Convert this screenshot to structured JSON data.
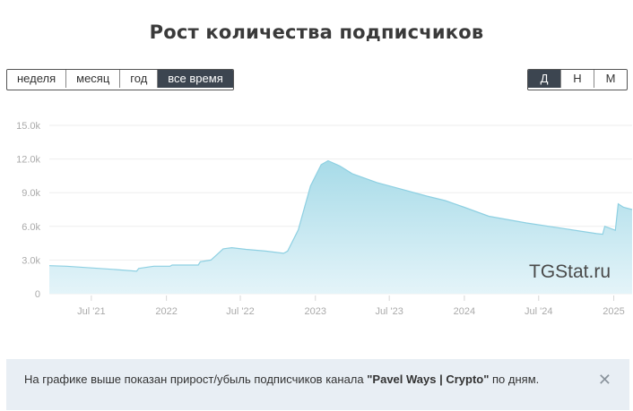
{
  "title": "Рост количества подписчиков",
  "range_buttons": [
    {
      "label": "неделя",
      "active": false
    },
    {
      "label": "месяц",
      "active": false
    },
    {
      "label": "год",
      "active": false
    },
    {
      "label": "все время",
      "active": true
    }
  ],
  "period_buttons": [
    {
      "label": "Д",
      "active": true
    },
    {
      "label": "Н",
      "active": false
    },
    {
      "label": "М",
      "active": false
    }
  ],
  "watermark": "TGStat.ru",
  "info": {
    "text_before": "На графике выше показан прирост/убыль подписчиков канала ",
    "channel": "\"Pavel Ways | Crypto\"",
    "text_after": " по дням.",
    "close_icon": "close-icon"
  },
  "colors": {
    "fill_top": "#a7dbe8",
    "fill_bottom": "#e4f4f9",
    "line": "#8ed0e2",
    "active_button": "#3c4550"
  },
  "chart_data": {
    "type": "area",
    "ylim": [
      0,
      15000
    ],
    "y_ticks": [
      {
        "value": 0,
        "label": "0"
      },
      {
        "value": 3000,
        "label": "3.0k"
      },
      {
        "value": 6000,
        "label": "6.0k"
      },
      {
        "value": 9000,
        "label": "9.0k"
      },
      {
        "value": 12000,
        "label": "12.0k"
      },
      {
        "value": 15000,
        "label": "15.0k"
      }
    ],
    "x_ticks": [
      {
        "date": "2021-07-01",
        "label": "Jul '21"
      },
      {
        "date": "2022-01-01",
        "label": "2022"
      },
      {
        "date": "2022-07-01",
        "label": "Jul '22"
      },
      {
        "date": "2023-01-01",
        "label": "2023"
      },
      {
        "date": "2023-07-01",
        "label": "Jul '23"
      },
      {
        "date": "2024-01-01",
        "label": "2024"
      },
      {
        "date": "2024-07-01",
        "label": "Jul '24"
      },
      {
        "date": "2025-01-01",
        "label": "2025"
      }
    ],
    "xlim": [
      "2021-03-20",
      "2025-02-15"
    ],
    "grid": true,
    "series": [
      {
        "points": [
          [
            "2021-03-20",
            2500
          ],
          [
            "2021-05-01",
            2450
          ],
          [
            "2021-07-01",
            2300
          ],
          [
            "2021-09-01",
            2150
          ],
          [
            "2021-10-20",
            2000
          ],
          [
            "2021-10-25",
            2250
          ],
          [
            "2021-12-01",
            2450
          ],
          [
            "2022-01-10",
            2450
          ],
          [
            "2022-01-15",
            2550
          ],
          [
            "2022-03-20",
            2550
          ],
          [
            "2022-03-25",
            2850
          ],
          [
            "2022-04-20",
            3000
          ],
          [
            "2022-05-20",
            4000
          ],
          [
            "2022-06-10",
            4100
          ],
          [
            "2022-07-15",
            3950
          ],
          [
            "2022-09-01",
            3800
          ],
          [
            "2022-10-15",
            3600
          ],
          [
            "2022-10-25",
            3800
          ],
          [
            "2022-11-20",
            5700
          ],
          [
            "2022-12-20",
            9600
          ],
          [
            "2023-01-15",
            11500
          ],
          [
            "2023-02-01",
            11850
          ],
          [
            "2023-03-01",
            11400
          ],
          [
            "2023-04-01",
            10700
          ],
          [
            "2023-06-01",
            9900
          ],
          [
            "2023-08-01",
            9300
          ],
          [
            "2023-10-01",
            8700
          ],
          [
            "2023-11-15",
            8300
          ],
          [
            "2024-01-01",
            7700
          ],
          [
            "2024-03-01",
            6900
          ],
          [
            "2024-06-01",
            6300
          ],
          [
            "2024-09-01",
            5800
          ],
          [
            "2024-11-20",
            5350
          ],
          [
            "2024-12-05",
            5300
          ],
          [
            "2024-12-10",
            6000
          ],
          [
            "2024-12-25",
            5800
          ],
          [
            "2025-01-05",
            5650
          ],
          [
            "2025-01-12",
            8000
          ],
          [
            "2025-01-25",
            7700
          ],
          [
            "2025-02-15",
            7500
          ]
        ]
      }
    ]
  }
}
